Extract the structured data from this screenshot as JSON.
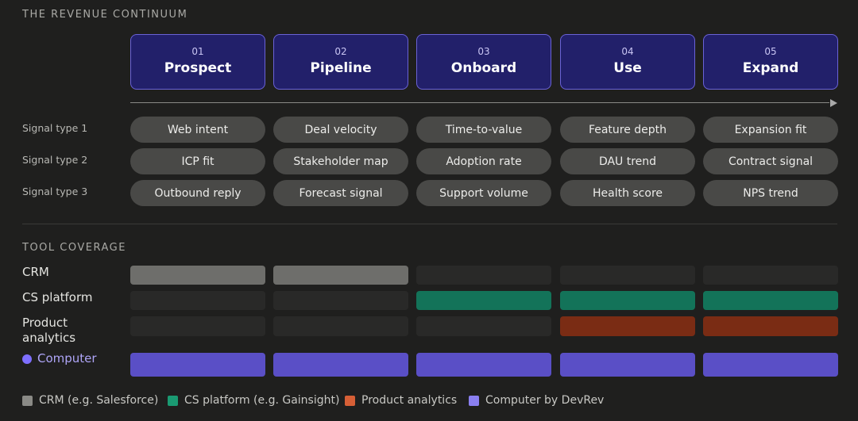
{
  "title": "THE REVENUE CONTINUUM",
  "stages": [
    {
      "number": "01",
      "name": "Prospect"
    },
    {
      "number": "02",
      "name": "Pipeline"
    },
    {
      "number": "03",
      "name": "Onboard"
    },
    {
      "number": "04",
      "name": "Use"
    },
    {
      "number": "05",
      "name": "Expand"
    }
  ],
  "signals": [
    {
      "label": "Signal type 1",
      "values": [
        "Web intent",
        "Deal velocity",
        "Time-to-value",
        "Feature depth",
        "Expansion fit"
      ]
    },
    {
      "label": "Signal type 2",
      "values": [
        "ICP fit",
        "Stakeholder map",
        "Adoption rate",
        "DAU trend",
        "Contract signal"
      ]
    },
    {
      "label": "Signal type 3",
      "values": [
        "Outbound reply",
        "Forecast signal",
        "Support volume",
        "Health score",
        "NPS trend"
      ]
    }
  ],
  "tools": {
    "title": "TOOL COVERAGE",
    "rows": [
      {
        "label": "CRM",
        "color": "#6e6e6b",
        "covered": [
          true,
          true,
          false,
          false,
          false
        ]
      },
      {
        "label": "CS platform",
        "color": "#137359",
        "covered": [
          false,
          false,
          true,
          true,
          true
        ]
      },
      {
        "label": "Product analytics",
        "color": "#7a2c14",
        "covered": [
          false,
          false,
          false,
          true,
          true
        ]
      },
      {
        "label": "Computer",
        "color": "#5a4fc6",
        "covered": [
          true,
          true,
          true,
          true,
          true
        ]
      }
    ]
  },
  "legend": [
    {
      "label": "CRM (e.g. Salesforce)",
      "color": "#8a8a86"
    },
    {
      "label": "CS platform (e.g. Gainsight)",
      "color": "#1a9a72"
    },
    {
      "label": "Product analytics",
      "color": "#d65f36"
    },
    {
      "label": "Computer by DevRev",
      "color": "#8a7ff0"
    }
  ]
}
